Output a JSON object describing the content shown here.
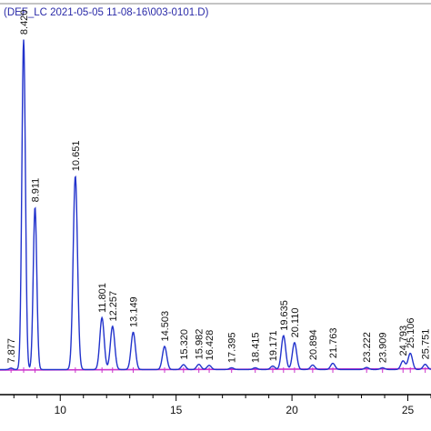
{
  "header": {
    "text": "(DEF_LC 2021-05-05 11-08-16\\003-0101.D)"
  },
  "colors": {
    "trace": "#2233cc",
    "baseline": "#cc33cc",
    "axis": "#000000",
    "label": "#111111",
    "header": "#2a2aa8"
  },
  "chart_data": {
    "type": "line",
    "title": "(DEF_LC 2021-05-05 11-08-16\\003-0101.D)",
    "xlabel": "",
    "ylabel": "",
    "xlim": [
      7.4,
      26.0
    ],
    "ylim": [
      0,
      100
    ],
    "x_ticks": [
      {
        "value": 10,
        "label": "10"
      },
      {
        "value": 15,
        "label": "15"
      },
      {
        "value": 20,
        "label": "20"
      },
      {
        "value": 25,
        "label": "25"
      }
    ],
    "grid": false,
    "peaks": [
      {
        "label": "7.877",
        "rt": 7.877,
        "height": 0.4
      },
      {
        "label": "8.420",
        "rt": 8.42,
        "height": 95.5
      },
      {
        "label": "8.911",
        "rt": 8.911,
        "height": 47
      },
      {
        "label": "10.651",
        "rt": 10.651,
        "height": 56
      },
      {
        "label": "11.801",
        "rt": 11.801,
        "height": 15
      },
      {
        "label": "12.257",
        "rt": 12.257,
        "height": 12.5
      },
      {
        "label": "13.149",
        "rt": 13.149,
        "height": 10.8
      },
      {
        "label": "14.503",
        "rt": 14.503,
        "height": 6.7
      },
      {
        "label": "15.320",
        "rt": 15.32,
        "height": 1.4
      },
      {
        "label": "15.982",
        "rt": 15.982,
        "height": 1.5
      },
      {
        "label": "16.428",
        "rt": 16.428,
        "height": 1.2
      },
      {
        "label": "17.395",
        "rt": 17.395,
        "height": 0.5
      },
      {
        "label": "18.415",
        "rt": 18.415,
        "height": 0.5
      },
      {
        "label": "19.171",
        "rt": 19.171,
        "height": 1.0
      },
      {
        "label": "19.635",
        "rt": 19.635,
        "height": 9.8
      },
      {
        "label": "20.110",
        "rt": 20.11,
        "height": 7.8
      },
      {
        "label": "20.894",
        "rt": 20.894,
        "height": 1.3
      },
      {
        "label": "21.763",
        "rt": 21.763,
        "height": 1.8
      },
      {
        "label": "23.222",
        "rt": 23.222,
        "height": 0.6
      },
      {
        "label": "23.909",
        "rt": 23.909,
        "height": 0.5
      },
      {
        "label": "24.793",
        "rt": 24.793,
        "height": 2.5
      },
      {
        "label": "25.106",
        "rt": 25.106,
        "height": 4.7
      },
      {
        "label": "25.751",
        "rt": 25.751,
        "height": 1.5
      }
    ]
  }
}
